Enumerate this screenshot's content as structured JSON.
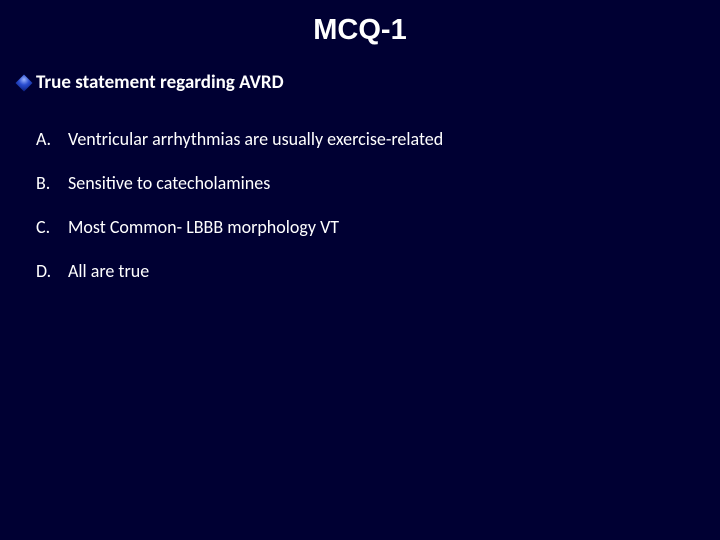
{
  "background_color": "#000033",
  "title": {
    "text": "MCQ-1",
    "color": "#ffffff",
    "font_size_pt": 22,
    "font_weight": "bold"
  },
  "stem": {
    "bullet_style": "diamond",
    "bullet_color": "#2a4dd0",
    "text": "True statement regarding AVRD",
    "color": "#ffffff",
    "font_size_pt": 14,
    "font_weight": "bold"
  },
  "options": [
    {
      "letter": "A.",
      "text": "Ventricular arrhythmias are usually exercise-related"
    },
    {
      "letter": "B.",
      "text": "Sensitive to catecholamines"
    },
    {
      "letter": "C.",
      "text": "Most Common- LBBB morphology VT"
    },
    {
      "letter": "D.",
      "text": "All are true"
    }
  ],
  "option_style": {
    "color": "#ffffff",
    "font_size_pt": 13
  }
}
